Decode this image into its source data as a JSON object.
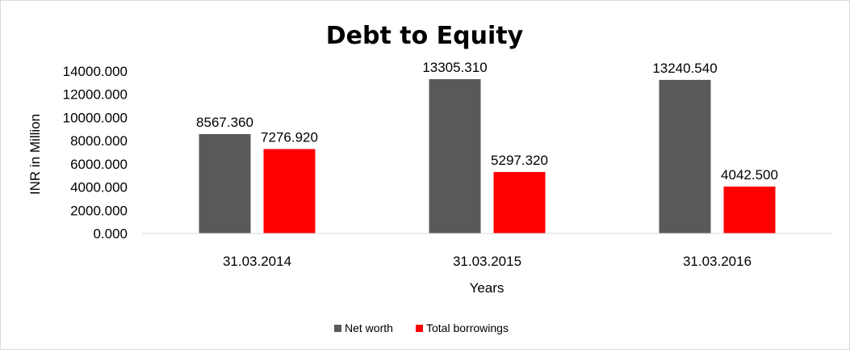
{
  "chart_data": {
    "type": "bar",
    "title": "Debt to Equity",
    "xlabel": "Years",
    "ylabel": "INR in Million",
    "categories": [
      "31.03.2014",
      "31.03.2015",
      "31.03.2016"
    ],
    "series": [
      {
        "name": "Net worth",
        "color": "#595959",
        "values": [
          8567.36,
          13305.31,
          13240.54
        ],
        "labels": [
          "8567.360",
          "13305.310",
          "13240.540"
        ]
      },
      {
        "name": "Total borrowings",
        "color": "#ff0000",
        "values": [
          7276.92,
          5297.32,
          4042.5
        ],
        "labels": [
          "7276.920",
          "5297.320",
          "4042.500"
        ]
      }
    ],
    "ylim": [
      0,
      14000
    ],
    "yticks": [
      0,
      2000,
      4000,
      6000,
      8000,
      10000,
      12000,
      14000
    ],
    "ytick_labels": [
      "0.000",
      "2000.000",
      "4000.000",
      "6000.000",
      "8000.000",
      "10000.000",
      "12000.000",
      "14000.000"
    ],
    "grid": false,
    "legend_position": "bottom",
    "legend_labels": [
      "Net worth",
      "Total borrowings"
    ]
  }
}
